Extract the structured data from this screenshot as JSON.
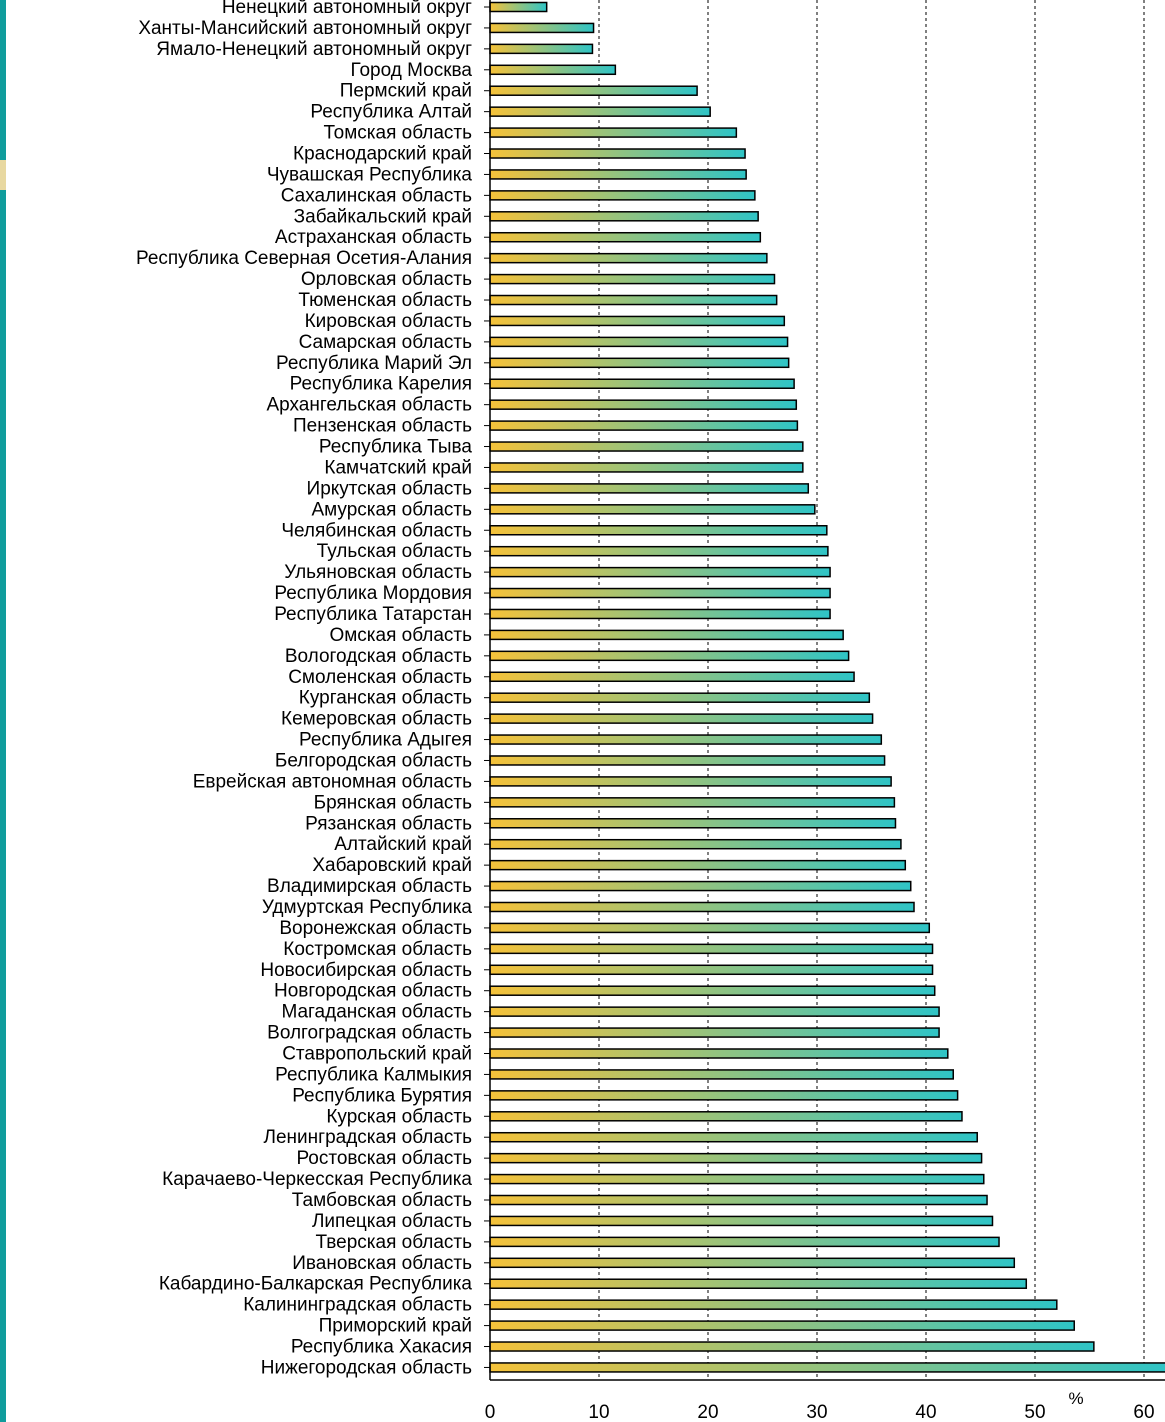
{
  "chart_data": {
    "type": "bar",
    "orientation": "horizontal",
    "title": "",
    "xlabel": "",
    "ylabel": "",
    "unit_label": "%",
    "xlim": [
      0,
      62
    ],
    "x_ticks": [
      "0",
      "10",
      "20",
      "30",
      "40",
      "50",
      "60"
    ],
    "grid": "vertical dashed",
    "bar_gradient": [
      "#f5c23a",
      "#2fc4c6"
    ],
    "accent_color": "#0f9c9c",
    "categories": [
      "Ненецкий автономный округ",
      "Ханты-Мансийский автономный округ",
      "Ямало-Ненецкий автономный округ",
      "Город Москва",
      "Пермский край",
      "Республика Алтай",
      "Томская область",
      "Краснодарский край",
      "Чувашская Республика",
      "Сахалинская область",
      "Забайкальский край",
      "Астраханская область",
      "Республика Северная Осетия-Алания",
      "Орловская область",
      "Тюменская область",
      "Кировская область",
      "Самарская область",
      "Республика Марий Эл",
      "Республика Карелия",
      "Архангельская область",
      "Пензенская область",
      "Республика Тыва",
      "Камчатский край",
      "Иркутская область",
      "Амурская область",
      "Челябинская область",
      "Тульская область",
      "Ульяновская область",
      "Республика Мордовия",
      "Республика Татарстан",
      "Омская область",
      "Вологодская область",
      "Смоленская область",
      "Курганская область",
      "Кемеровская область",
      "Республика Адыгея",
      "Белгородская область",
      "Еврейская автономная область",
      "Брянская область",
      "Рязанская область",
      "Алтайский край",
      "Хабаровский край",
      "Владимирская область",
      "Удмуртская Республика",
      "Воронежская область",
      "Костромская область",
      "Новосибирская область",
      "Новгородская область",
      "Магаданская область",
      "Волгоградская область",
      "Ставропольский край",
      "Республика Калмыкия",
      "Республика Бурятия",
      "Курская область",
      "Ленинградская область",
      "Ростовская область",
      "Карачаево-Черкесская Республика",
      "Тамбовская область",
      "Липецкая область",
      "Тверская область",
      "Ивановская область",
      "Кабардино-Балкарская Республика",
      "Калининградская область",
      "Приморский край",
      "Республика Хакасия",
      "Нижегородская область"
    ],
    "values": [
      5.2,
      9.5,
      9.4,
      11.5,
      19.0,
      20.2,
      22.6,
      23.4,
      23.5,
      24.3,
      24.6,
      24.8,
      25.4,
      26.1,
      26.3,
      27.0,
      27.3,
      27.4,
      27.9,
      28.1,
      28.2,
      28.7,
      28.7,
      29.2,
      29.8,
      30.9,
      31.0,
      31.2,
      31.2,
      31.2,
      32.4,
      32.9,
      33.4,
      34.8,
      35.1,
      35.9,
      36.2,
      36.8,
      37.1,
      37.2,
      37.7,
      38.1,
      38.6,
      38.9,
      40.3,
      40.6,
      40.6,
      40.8,
      41.2,
      41.2,
      42.0,
      42.5,
      42.9,
      43.3,
      44.7,
      45.1,
      45.3,
      45.6,
      46.1,
      46.7,
      48.1,
      49.2,
      52.0,
      53.6,
      55.4,
      62.0
    ]
  }
}
